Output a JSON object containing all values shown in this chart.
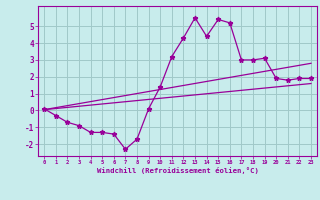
{
  "title": "",
  "xlabel": "Windchill (Refroidissement éolien,°C)",
  "ylabel": "",
  "background_color": "#c8ecec",
  "grid_color": "#a0c8c8",
  "line_color": "#990099",
  "xlim": [
    -0.5,
    23.5
  ],
  "ylim": [
    -2.7,
    6.2
  ],
  "yticks": [
    -2,
    -1,
    0,
    1,
    2,
    3,
    4,
    5
  ],
  "xticks": [
    0,
    1,
    2,
    3,
    4,
    5,
    6,
    7,
    8,
    9,
    10,
    11,
    12,
    13,
    14,
    15,
    16,
    17,
    18,
    19,
    20,
    21,
    22,
    23
  ],
  "scatter_x": [
    0,
    1,
    2,
    3,
    4,
    5,
    6,
    7,
    8,
    9,
    10,
    11,
    12,
    13,
    14,
    15,
    16,
    17,
    18,
    19,
    20,
    21,
    22,
    23
  ],
  "scatter_y": [
    0.1,
    -0.3,
    -0.7,
    -0.9,
    -1.3,
    -1.3,
    -1.4,
    -2.3,
    -1.7,
    0.1,
    1.4,
    3.2,
    4.3,
    5.5,
    4.4,
    5.4,
    5.2,
    3.0,
    3.0,
    3.1,
    1.9,
    1.8,
    1.9,
    1.9
  ],
  "line1_x": [
    0,
    23
  ],
  "line1_y": [
    0.05,
    1.6
  ],
  "line2_x": [
    0,
    23
  ],
  "line2_y": [
    0.05,
    2.8
  ],
  "xlabel_fontsize": 5.2,
  "tick_fontsize_x": 4.0,
  "tick_fontsize_y": 5.5
}
